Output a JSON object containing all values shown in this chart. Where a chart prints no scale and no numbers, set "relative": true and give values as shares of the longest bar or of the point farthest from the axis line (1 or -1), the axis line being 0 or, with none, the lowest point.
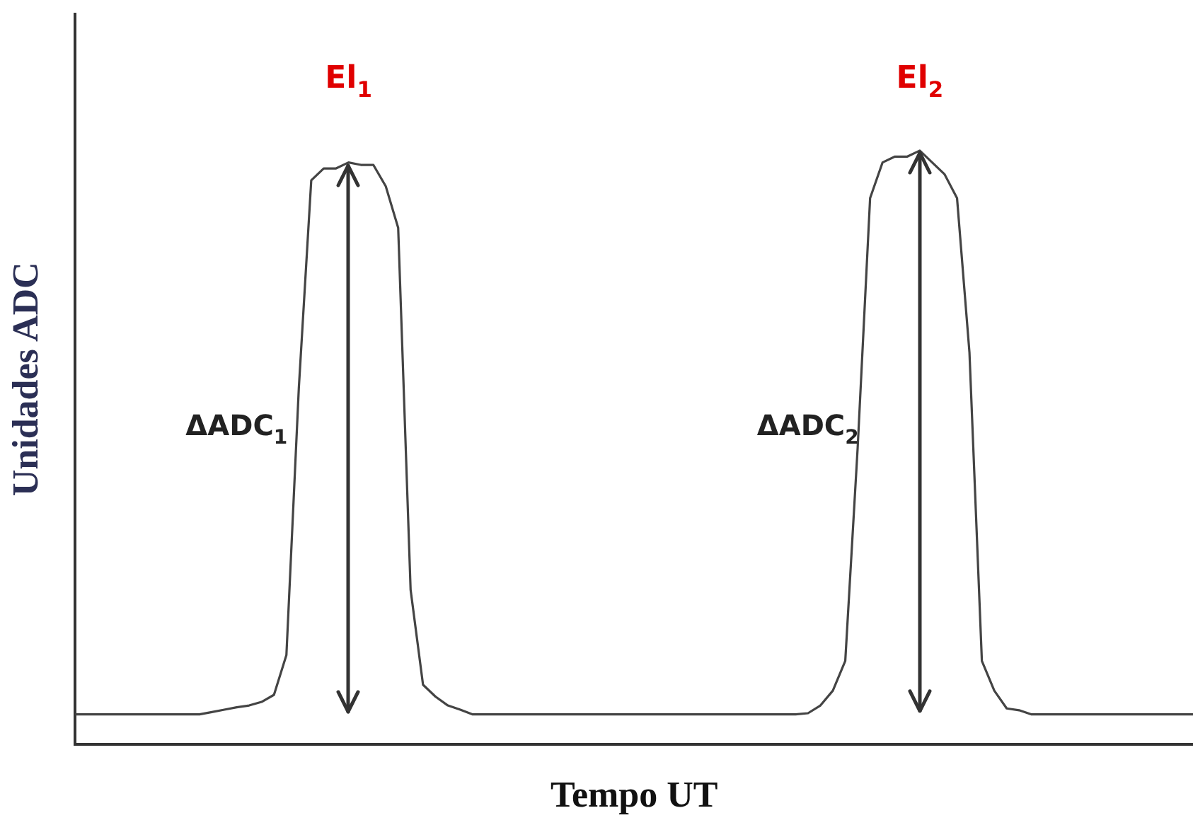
{
  "chart_data": {
    "type": "line",
    "relative": true,
    "xlabel": "Tempo UT",
    "ylabel": "Unidades ADC",
    "grid": false,
    "legend": false,
    "marker": "none",
    "line_style": "solid",
    "categories": [
      null,
      null,
      null,
      null,
      null,
      null,
      null,
      null,
      null,
      null,
      null,
      null,
      null,
      null,
      null,
      null,
      null,
      null,
      null,
      null,
      null,
      null,
      null,
      null,
      null,
      null,
      null,
      null,
      null,
      null,
      null,
      null,
      null,
      null,
      null,
      null,
      null,
      null,
      null,
      null,
      null,
      null,
      null,
      null,
      null,
      null,
      null,
      null,
      null,
      null,
      null,
      null,
      null,
      null,
      null,
      null,
      null,
      null,
      null,
      null,
      null,
      null,
      null,
      null,
      null,
      null,
      null,
      null,
      null,
      null,
      null,
      null,
      null,
      null,
      null,
      null,
      null,
      null,
      null,
      null,
      null,
      null,
      null,
      null,
      null,
      null,
      null,
      null,
      null,
      null,
      null
    ],
    "series": [
      {
        "color": "#444444",
        "values": [
          0.05,
          0.05,
          0.05,
          0.05,
          0.05,
          0.05,
          0.05,
          0.05,
          0.05,
          0.05,
          0.05,
          0.054,
          0.058,
          0.062,
          0.065,
          0.071,
          0.083,
          0.15,
          0.6,
          0.95,
          0.97,
          0.97,
          0.98,
          0.976,
          0.976,
          0.94,
          0.87,
          0.26,
          0.1,
          0.08,
          0.065,
          0.058,
          0.05,
          0.05,
          0.05,
          0.05,
          0.05,
          0.05,
          0.05,
          0.05,
          0.05,
          0.05,
          0.05,
          0.05,
          0.05,
          0.05,
          0.05,
          0.05,
          0.05,
          0.05,
          0.05,
          0.05,
          0.05,
          0.05,
          0.05,
          0.05,
          0.05,
          0.05,
          0.05,
          0.052,
          0.065,
          0.09,
          0.14,
          0.5,
          0.92,
          0.98,
          0.99,
          0.99,
          1,
          0.98,
          0.96,
          0.92,
          0.66,
          0.14,
          0.09,
          0.06,
          0.057,
          0.05,
          0.05,
          0.05,
          0.05,
          0.05,
          0.05,
          0.05,
          0.05,
          0.05,
          0.05,
          0.05,
          0.05,
          0.05,
          0.05
        ]
      }
    ],
    "annotations": [
      "El$_{1}$",
      "El$_{2}$",
      "ΔADC$_{1}$",
      "ΔADC$_{2}$"
    ]
  }
}
